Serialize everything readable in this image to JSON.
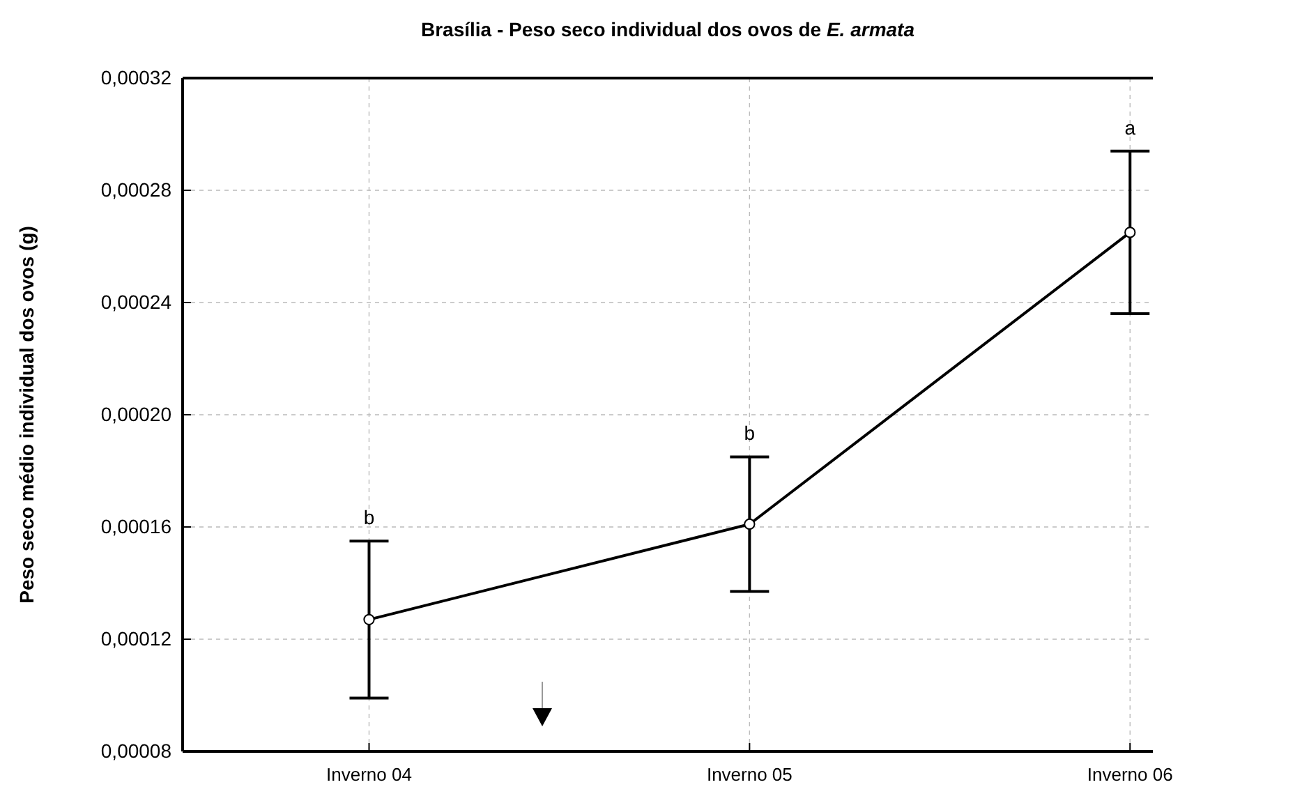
{
  "chart_data": {
    "type": "line",
    "title": "Brasília - Peso seco individual dos ovos de E. armata",
    "ylabel": "Peso seco médio individual dos ovos (g)",
    "categories": [
      "Inverno 04",
      "Inverno 05",
      "Inverno 06"
    ],
    "series": [
      {
        "color": "#000000",
        "values": [
          0.000127,
          0.000161,
          0.000265
        ],
        "errors": [
          [
            9.9e-05,
            0.000155
          ],
          [
            0.000137,
            0.000185
          ],
          [
            0.000236,
            0.000294
          ]
        ]
      }
    ],
    "ylim": [
      8e-05,
      0.00032
    ],
    "yticks": [
      {
        "value": 8e-05,
        "label": "0,00008"
      },
      {
        "value": 0.00012,
        "label": "0,00012"
      },
      {
        "value": 0.00016,
        "label": "0,00016"
      },
      {
        "value": 0.0002,
        "label": "0,00020"
      },
      {
        "value": 0.00024,
        "label": "0,00024"
      },
      {
        "value": 0.00028,
        "label": "0,00028"
      },
      {
        "value": 0.00032,
        "label": "0,00032"
      }
    ],
    "grid": true,
    "marker": "circle",
    "line_style": "solid",
    "annotations": [
      {
        "text": "b",
        "x": "Inverno 04",
        "y": 0.000155
      },
      {
        "text": "b",
        "x": "Inverno 05",
        "y": 0.000185
      },
      {
        "text": "a",
        "x": "Inverno 06",
        "y": 0.000294
      }
    ]
  }
}
